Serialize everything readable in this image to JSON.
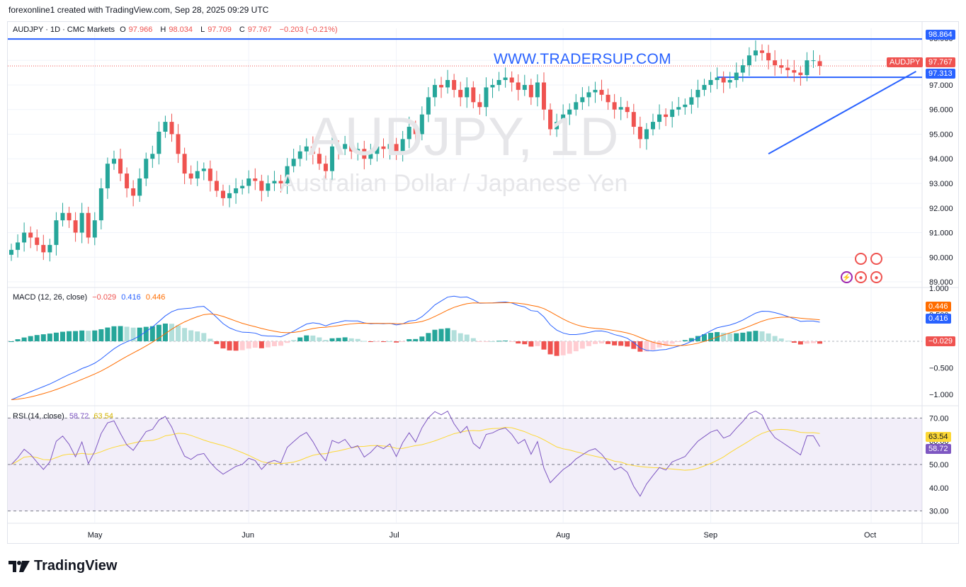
{
  "header": {
    "credit": "forexonline1 created with TradingView.com, Sep 28, 2025 09:29 UTC"
  },
  "symbol_legend": {
    "symbol": "AUDJPY · 1D · CMC Markets",
    "o_label": "O",
    "o_value": "97.966",
    "h_label": "H",
    "h_value": "98.034",
    "l_label": "L",
    "l_value": "97.709",
    "c_label": "C",
    "c_value": "97.767",
    "change": "−0.203 (−0.21%)"
  },
  "watermark": {
    "symbol": "AUDJPY, 1D",
    "description": "Australian Dollar / Japanese Yen"
  },
  "site_url": "WWW.TRADERSUP.COM",
  "price_axis": {
    "ticks": [
      "89.000",
      "90.000",
      "91.000",
      "92.000",
      "93.000",
      "94.000",
      "95.000",
      "96.000",
      "97.000",
      "98.000",
      "98.900"
    ],
    "resistance_label": "98.864",
    "support_label": "97.313",
    "symbol_tag": "AUDJPY",
    "last_price": "97.767"
  },
  "macd": {
    "title": "MACD (12, 26, close)",
    "hist": "−0.029",
    "macd": "0.416",
    "signal": "0.446",
    "ticks": [
      "1.000",
      "0.500",
      "−0.500",
      "−1.000"
    ],
    "tag_signal": "0.446",
    "tag_macd": "0.416",
    "tag_hist": "−0.029"
  },
  "rsi": {
    "title": "RSI (14, close)",
    "rsi": "58.72",
    "ma": "63.54",
    "ticks": [
      "70.00",
      "60.00",
      "50.00",
      "40.00",
      "30.00"
    ],
    "tag_ma": "63.54",
    "tag_rsi": "58.72"
  },
  "time_axis": [
    "May",
    "Jun",
    "Jul",
    "Aug",
    "Sep",
    "Oct"
  ],
  "brand": "TradingView",
  "colors": {
    "up": "#26a69a",
    "down": "#ef5350",
    "line": "#2962ff",
    "macd": "#2962ff",
    "signal": "#ff6d00",
    "rsi": "#7e57c2",
    "rsi_ma": "#fdd835"
  },
  "chart_data": {
    "type": "candlestick",
    "title": "AUDJPY · 1D · CMC Markets",
    "ylim": [
      88.8,
      99.3
    ],
    "x_labels": [
      "May",
      "Jun",
      "Jul",
      "Aug",
      "Sep",
      "Oct"
    ],
    "closes": [
      90.3,
      90.6,
      91.0,
      90.8,
      90.5,
      90.2,
      90.5,
      91.5,
      91.8,
      91.5,
      91.0,
      91.8,
      90.8,
      91.5,
      92.8,
      93.8,
      94.0,
      93.4,
      92.8,
      92.5,
      93.2,
      94.0,
      94.2,
      95.1,
      95.5,
      95.0,
      94.2,
      93.4,
      93.2,
      93.5,
      93.6,
      93.1,
      92.7,
      92.4,
      92.6,
      92.8,
      92.9,
      93.2,
      93.1,
      92.7,
      93.0,
      93.1,
      93.0,
      93.7,
      94.0,
      94.3,
      94.5,
      94.2,
      93.8,
      93.5,
      94.5,
      94.4,
      94.6,
      94.3,
      94.4,
      94.0,
      94.2,
      94.5,
      94.4,
      94.6,
      94.2,
      94.8,
      95.3,
      95.0,
      95.8,
      96.5,
      97.0,
      96.9,
      97.2,
      96.8,
      96.5,
      96.9,
      96.3,
      96.1,
      96.9,
      97.0,
      97.2,
      97.3,
      97.1,
      96.8,
      97.0,
      96.5,
      97.1,
      96.0,
      95.2,
      95.5,
      95.8,
      96.0,
      96.3,
      96.5,
      96.7,
      96.8,
      96.6,
      96.3,
      96.0,
      96.1,
      95.9,
      95.3,
      94.8,
      95.2,
      95.5,
      95.8,
      95.7,
      96.0,
      96.1,
      96.2,
      96.5,
      96.8,
      97.0,
      97.2,
      97.3,
      97.1,
      97.2,
      97.5,
      97.8,
      98.2,
      98.4,
      98.3,
      98.0,
      97.8,
      97.7,
      97.6,
      97.5,
      97.4,
      98.0,
      98.0,
      97.77
    ],
    "trendline": {
      "from": [
        118,
        94.2
      ],
      "to": [
        141,
        97.55
      ]
    },
    "horizontal_levels": [
      98.864,
      97.313
    ],
    "macd_series": {
      "macd": 0.416,
      "signal": 0.446,
      "hist": -0.029,
      "ylim": [
        -1.2,
        1.0
      ]
    },
    "rsi_series": {
      "rsi": 58.72,
      "ma": 63.54,
      "ylim": [
        25,
        75
      ],
      "levels": [
        70,
        50,
        30
      ]
    }
  }
}
